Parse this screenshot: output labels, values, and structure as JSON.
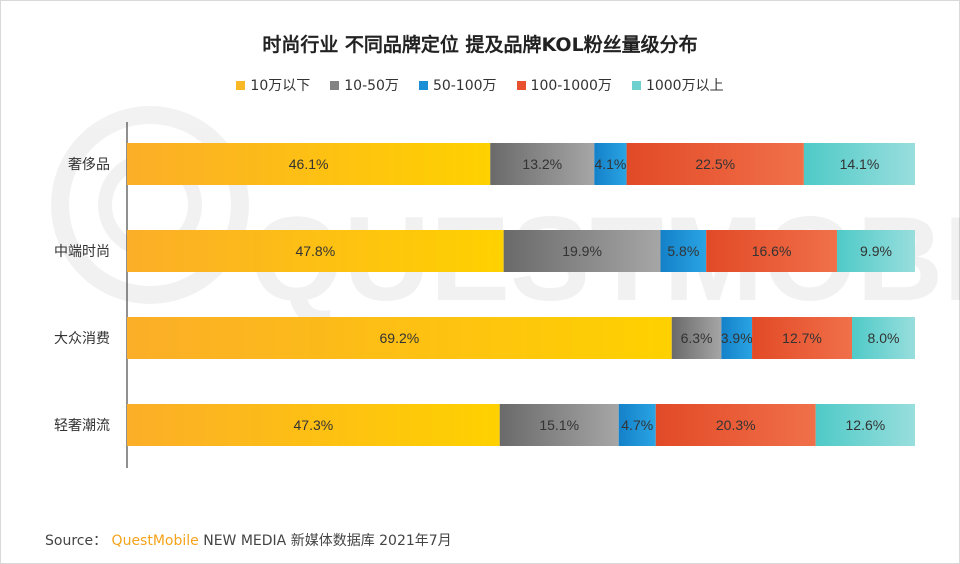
{
  "colors": {
    "series": [
      "#f9b825",
      "#838383",
      "#1b8fd6",
      "#e8502e",
      "#6ed0cf"
    ],
    "brand": "#f5a31a"
  },
  "source": {
    "label": "Source：",
    "brand": "QuestMobile",
    "rest": "NEW MEDIA 新媒体数据库 2021年7月"
  },
  "watermark": {
    "text": "QUESTMOBILE"
  },
  "chart_data": {
    "type": "bar",
    "orientation": "horizontal",
    "stacked": true,
    "title": "时尚行业 不同品牌定位 提及品牌KOL粉丝量级分布",
    "categories": [
      "奢侈品",
      "中端时尚",
      "大众消费",
      "轻奢潮流"
    ],
    "series": [
      {
        "name": "10万以下",
        "values": [
          46.1,
          47.8,
          69.2,
          47.3
        ],
        "labels": [
          "46.1%",
          "47.8%",
          "69.2%",
          "47.3%"
        ]
      },
      {
        "name": "10-50万",
        "values": [
          13.2,
          19.9,
          6.3,
          15.1
        ],
        "labels": [
          "13.2%",
          "19.9%",
          "6.3%",
          "15.1%"
        ]
      },
      {
        "name": "50-100万",
        "values": [
          4.1,
          5.8,
          3.9,
          4.7
        ],
        "labels": [
          "4.1%",
          "5.8%",
          "3.9%",
          "4.7%"
        ]
      },
      {
        "name": "100-1000万",
        "values": [
          22.5,
          16.6,
          12.7,
          20.3
        ],
        "labels": [
          "22.5%",
          "16.6%",
          "12.7%",
          "20.3%"
        ]
      },
      {
        "name": "1000万以上",
        "values": [
          14.1,
          9.9,
          8.0,
          12.6
        ],
        "labels": [
          "14.1%",
          "9.9%",
          "8.0%",
          "12.6%"
        ]
      }
    ],
    "xlim": [
      0,
      100
    ],
    "legend_position": "top",
    "grid": false
  }
}
